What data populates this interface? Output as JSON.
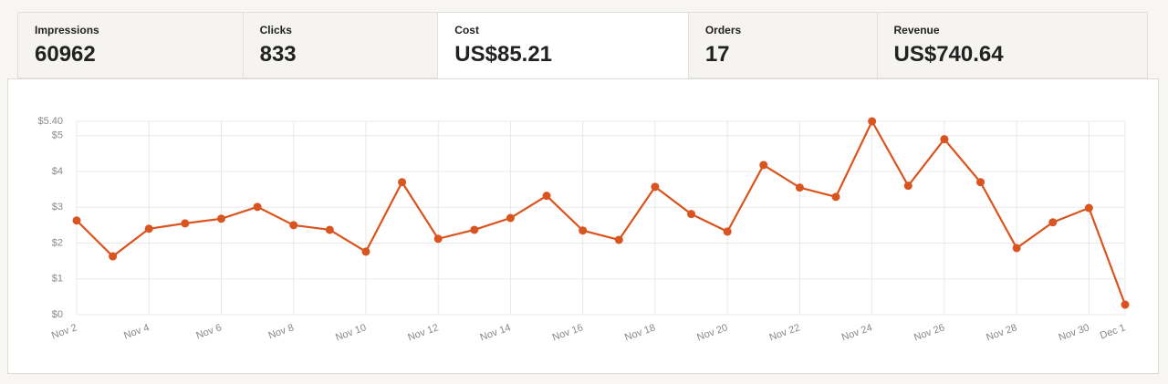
{
  "tabs": [
    {
      "label": "Impressions",
      "value": "60962"
    },
    {
      "label": "Clicks",
      "value": "833"
    },
    {
      "label": "Cost",
      "value": "US$85.21"
    },
    {
      "label": "Orders",
      "value": "17"
    },
    {
      "label": "Revenue",
      "value": "US$740.64"
    }
  ],
  "chart_data": {
    "type": "line",
    "categories": [
      "Nov 2",
      null,
      "Nov 4",
      null,
      "Nov 6",
      null,
      "Nov 8",
      null,
      "Nov 10",
      null,
      "Nov 12",
      null,
      "Nov 14",
      null,
      "Nov 16",
      null,
      "Nov 18",
      null,
      "Nov 20",
      null,
      "Nov 22",
      null,
      "Nov 24",
      null,
      "Nov 26",
      null,
      "Nov 28",
      null,
      "Nov 30",
      "Dec 1"
    ],
    "values": [
      2.63,
      1.63,
      2.4,
      2.55,
      2.68,
      3.01,
      2.5,
      2.37,
      1.76,
      3.7,
      2.12,
      2.37,
      2.7,
      3.32,
      2.35,
      2.09,
      3.57,
      2.81,
      2.32,
      4.18,
      3.55,
      3.29,
      5.4,
      3.6,
      4.9,
      3.7,
      1.86,
      2.58,
      2.98,
      0.28
    ],
    "color": "#d9541e",
    "ylim": [
      0,
      5.4
    ],
    "yticks": [
      {
        "value": 0,
        "label": "$0"
      },
      {
        "value": 1,
        "label": "$1"
      },
      {
        "value": 2,
        "label": "$2"
      },
      {
        "value": 3,
        "label": "$3"
      },
      {
        "value": 4,
        "label": "$4"
      },
      {
        "value": 5,
        "label": "$5"
      },
      {
        "value": 5.4,
        "label": "$5.40"
      }
    ],
    "grid": true
  }
}
